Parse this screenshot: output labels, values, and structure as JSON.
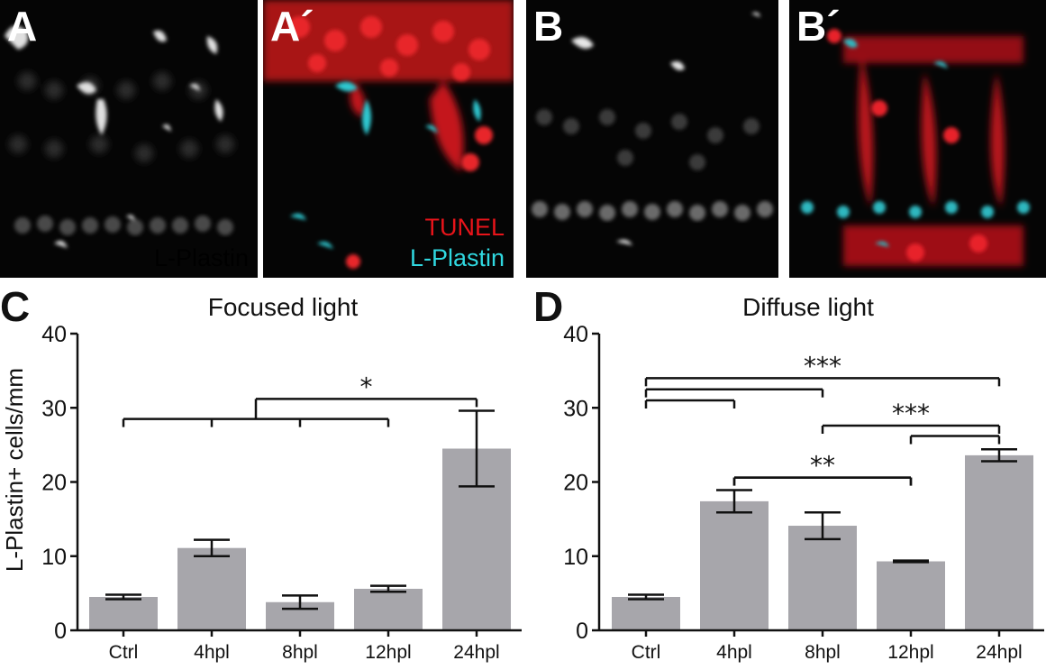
{
  "panels": [
    {
      "label": "A",
      "caption_lines": [
        {
          "text": "L-Plastin",
          "color": "#ffffff"
        }
      ]
    },
    {
      "label": "A´",
      "caption_lines": [
        {
          "text": "TUNEL",
          "color": "#e8141a"
        },
        {
          "text": "L-Plastin",
          "color": "#30d8e0"
        }
      ]
    },
    {
      "label": "B",
      "caption_lines": []
    },
    {
      "label": "B´",
      "caption_lines": []
    }
  ],
  "colors": {
    "bar": "#a7a6ab",
    "tunel": "#e8141a",
    "lplastin": "#30d8e0",
    "panel_bg": "#050505"
  },
  "chart_data": [
    {
      "type": "bar",
      "panel_label": "C",
      "title": "Focused light",
      "ylabel": "L-Plastin+ cells/mm",
      "xlabel": "",
      "categories": [
        "Ctrl",
        "4hpl",
        "8hpl",
        "12hpl",
        "24hpl"
      ],
      "values": [
        4.5,
        11.1,
        3.8,
        5.6,
        24.5
      ],
      "errors": [
        0.3,
        1.1,
        0.9,
        0.4,
        5.1
      ],
      "ylim": [
        0,
        40
      ],
      "yticks": [
        0,
        10,
        20,
        30,
        40
      ],
      "grid": false,
      "annotations": [
        {
          "type": "multi",
          "label": "*",
          "left": [
            0,
            1,
            2,
            3
          ],
          "right": 4,
          "left_y": 28.5,
          "top_y": 31.2
        }
      ]
    },
    {
      "type": "bar",
      "panel_label": "D",
      "title": "Diffuse light",
      "ylabel": "",
      "xlabel": "",
      "categories": [
        "Ctrl",
        "4hpl",
        "8hpl",
        "12hpl",
        "24hpl"
      ],
      "values": [
        4.5,
        17.4,
        14.1,
        9.3,
        23.6
      ],
      "errors": [
        0.3,
        1.5,
        1.8,
        0.1,
        0.8
      ],
      "ylim": [
        0,
        40
      ],
      "yticks": [
        0,
        10,
        20,
        30,
        40
      ],
      "grid": false,
      "annotations": [
        {
          "type": "bracket",
          "label": "",
          "from": 0,
          "to": 1,
          "y": 31.0
        },
        {
          "type": "bracket",
          "label": "",
          "from": 0,
          "to": 2,
          "y": 32.5
        },
        {
          "type": "bracket",
          "label": "***",
          "from": 0,
          "to": 4,
          "y": 34.0
        },
        {
          "type": "bracket",
          "label": "",
          "from": 1,
          "to": 3,
          "y": 20.6
        },
        {
          "type": "bracket",
          "label": "**",
          "from": 1,
          "to": 3,
          "y": 20.6
        },
        {
          "type": "bracket",
          "label": "***",
          "from": 2,
          "to": 4,
          "y": 27.6
        },
        {
          "type": "bracket",
          "label": "",
          "from": 3,
          "to": 4,
          "y": 26.2
        }
      ]
    }
  ]
}
